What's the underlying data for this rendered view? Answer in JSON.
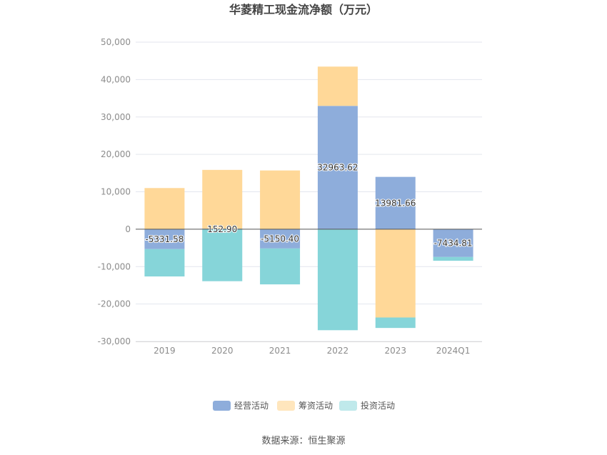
{
  "chart_data": {
    "type": "bar",
    "stacked": true,
    "title": "华菱精工现金流净额（万元）",
    "categories": [
      "2019",
      "2020",
      "2021",
      "2022",
      "2023",
      "2024Q1"
    ],
    "series": [
      {
        "name": "经营活动",
        "color": "#8eaddb",
        "values": [
          -5331.58,
          152.9,
          -5150.4,
          32963.62,
          13981.66,
          -7434.81
        ]
      },
      {
        "name": "筹资活动",
        "color": "#ffd898",
        "values": [
          11000,
          15700,
          15700,
          10500,
          -23600,
          0
        ]
      },
      {
        "name": "投资活动",
        "color": "#86d5d9",
        "values": [
          -7300,
          -13900,
          -9600,
          -27000,
          -2800,
          -1000
        ]
      }
    ],
    "data_labels": [
      "-5331.58",
      "152.90",
      "-5150.40",
      "32963.62",
      "13981.66",
      "-7434.81"
    ],
    "ylim": [
      -30000,
      50000
    ],
    "yticks": [
      -30000,
      -20000,
      -10000,
      0,
      10000,
      20000,
      30000,
      40000,
      50000
    ],
    "ytick_labels": [
      "-30,000",
      "-20,000",
      "-10,000",
      "0",
      "10,000",
      "20,000",
      "30,000",
      "40,000",
      "50,000"
    ],
    "grid": true,
    "legend_position": "bottom-center",
    "legend_colors": [
      "#8eaddb",
      "#ffe6bd",
      "#bfe9eb"
    ]
  },
  "source": "数据来源：恒生聚源"
}
